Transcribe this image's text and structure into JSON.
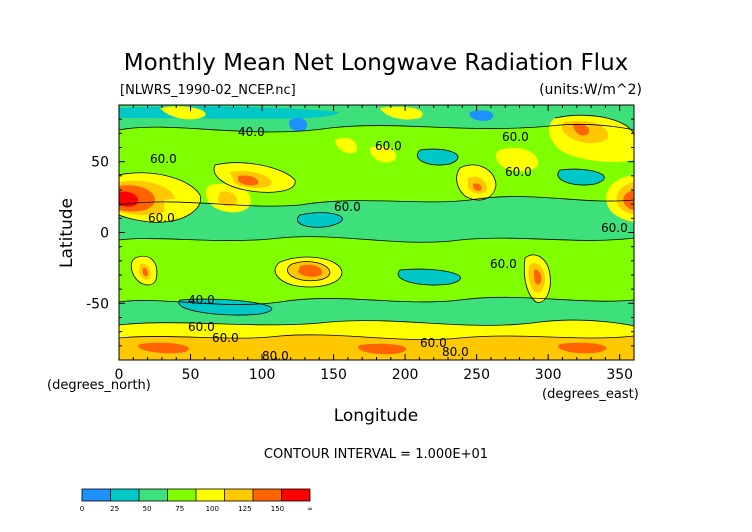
{
  "chart_data": {
    "type": "heatmap",
    "title": "Monthly Mean Net Longwave Radiation Flux",
    "subtitle_left": "[NLWRS_1990-02_NCEP.nc]",
    "units": "(units:W/m^2)",
    "xlabel": "Longitude",
    "ylabel": "Latitude",
    "x_axis_note": "(degrees_east)",
    "y_axis_note": "(degrees_north)",
    "x_ticks": [
      "0",
      "50",
      "100",
      "150",
      "200",
      "250",
      "300",
      "350"
    ],
    "x_tick_values": [
      0,
      50,
      100,
      150,
      200,
      250,
      300,
      350
    ],
    "y_ticks": [
      "50",
      "0",
      "-50"
    ],
    "y_tick_values": [
      50,
      0,
      -50
    ],
    "xlim": [
      0,
      360
    ],
    "ylim": [
      -90,
      90
    ],
    "contour_interval_text": "CONTOUR INTERVAL = 1.000E+01",
    "contour_labels": [
      "40.0",
      "60.0",
      "60.0",
      "60.0",
      "60.0",
      "60.0",
      "60.0",
      "60.0",
      "60.0",
      "40.0",
      "60.0",
      "60.0",
      "60.0",
      "80.0",
      "80.0"
    ],
    "colorbar": {
      "tick_labels": [
        "0",
        "25",
        "50",
        "75",
        "100",
        "125",
        "150",
        "∞"
      ],
      "colors": [
        "#1e90ff",
        "#00c8c8",
        "#3de07a",
        "#7fff00",
        "#ffff00",
        "#ffc800",
        "#ff6400",
        "#ff0000"
      ]
    }
  }
}
